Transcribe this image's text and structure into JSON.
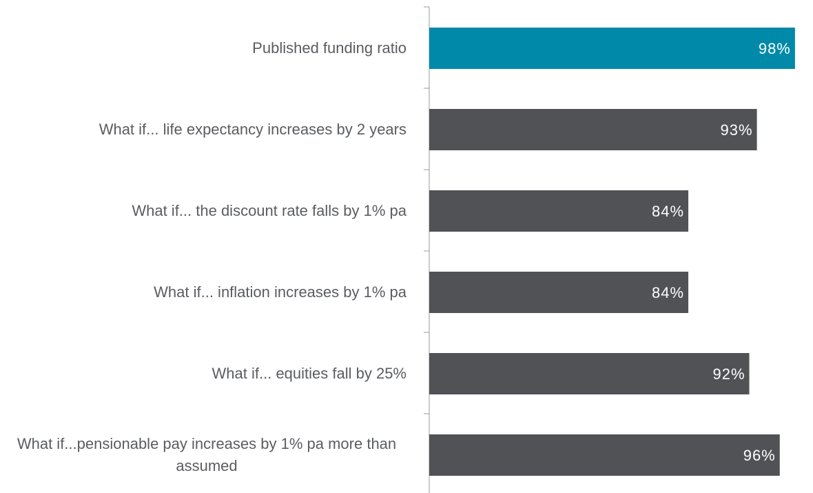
{
  "chart_data": {
    "type": "barh",
    "categories": [
      "Published funding ratio",
      "What if... life expectancy increases by 2 years",
      "What if... the discount rate falls by 1% pa",
      "What if... inflation increases by 1% pa",
      "What if... equities fall by 25%",
      "What if...pensionable pay increases by 1% pa more than assumed"
    ],
    "values": [
      98,
      93,
      84,
      84,
      92,
      96
    ],
    "value_labels": [
      "98%",
      "93%",
      "84%",
      "84%",
      "92%",
      "96%"
    ],
    "colors": [
      "#0089a8",
      "#505256",
      "#505256",
      "#505256",
      "#505256",
      "#505256"
    ],
    "xlim": [
      50,
      100
    ]
  }
}
